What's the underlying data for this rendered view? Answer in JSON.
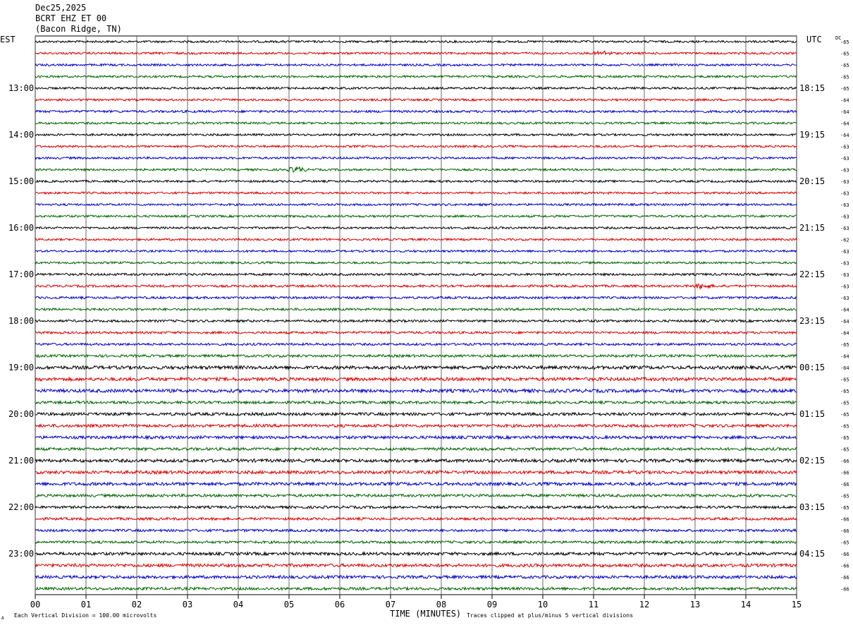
{
  "header": {
    "date": "Dec25,2025",
    "station": "BCRT EHZ ET 00",
    "location": "(Bacon Ridge, TN)"
  },
  "left_axis_label": "EST",
  "right_axis_label": "UTC",
  "dc_label": "DC",
  "footer": {
    "scale_note": "Each Vertical Division =  100.00 microvolts",
    "xlabel": "TIME (MINUTES)",
    "clip_note": "Traces clipped at plus/minus 5 vertical divisions",
    "corner_mark": "A"
  },
  "colors": {
    "trace_cycle": [
      "#000000",
      "#e00000",
      "#0000cc",
      "#006400"
    ],
    "grid": "#000000"
  },
  "chart_data": {
    "type": "line",
    "subtype": "helicorder",
    "xlim": [
      0,
      15
    ],
    "x_ticks": [
      "00",
      "01",
      "02",
      "03",
      "04",
      "05",
      "06",
      "07",
      "08",
      "09",
      "10",
      "11",
      "12",
      "13",
      "14",
      "15"
    ],
    "rows_per_hour": 4,
    "row_count": 48,
    "left_hour_labels": [
      "13:00",
      "14:00",
      "15:00",
      "16:00",
      "17:00",
      "18:00",
      "19:00",
      "20:00",
      "21:00",
      "22:00",
      "23:00"
    ],
    "right_hour_labels": [
      "18:15",
      "19:15",
      "20:15",
      "21:15",
      "22:15",
      "23:15",
      "00:15",
      "01:15",
      "02:15",
      "03:15",
      "04:15"
    ],
    "dc_offsets": [
      "-65",
      "-65",
      "-65",
      "-65",
      "-65",
      "-64",
      "-64",
      "-64",
      "-64",
      "-63",
      "-63",
      "-63",
      "-63",
      "-63",
      "-63",
      "-63",
      "-63",
      "-62",
      "-63",
      "-63",
      "-63",
      "-63",
      "-63",
      "-64",
      "-64",
      "-64",
      "-65",
      "-64",
      "-64",
      "-65",
      "-65",
      "-65",
      "-65",
      "-65",
      "-65",
      "-65",
      "-66",
      "-66",
      "-66",
      "-65",
      "-65",
      "-66",
      "-66",
      "-65",
      "-66",
      "-66",
      "-66",
      "-66"
    ],
    "row_noise_amplitude": [
      1.0,
      1.0,
      1.0,
      1.0,
      1.0,
      1.0,
      1.1,
      1.0,
      1.0,
      1.0,
      1.0,
      1.0,
      1.0,
      1.0,
      1.0,
      1.0,
      1.0,
      1.0,
      1.0,
      1.0,
      1.1,
      1.1,
      1.1,
      1.1,
      1.1,
      1.1,
      1.1,
      1.2,
      1.6,
      1.6,
      1.6,
      1.3,
      1.4,
      1.4,
      1.4,
      1.3,
      1.5,
      1.5,
      1.5,
      1.3,
      1.2,
      1.2,
      1.2,
      1.2,
      1.4,
      1.5,
      1.4,
      1.3
    ],
    "events": [
      {
        "row": 1,
        "minute": 11.2,
        "amplitude": 2.5
      },
      {
        "row": 11,
        "minute": 5.15,
        "amplitude": 3.5
      },
      {
        "row": 21,
        "minute": 13.15,
        "amplitude": 3.0
      }
    ]
  }
}
